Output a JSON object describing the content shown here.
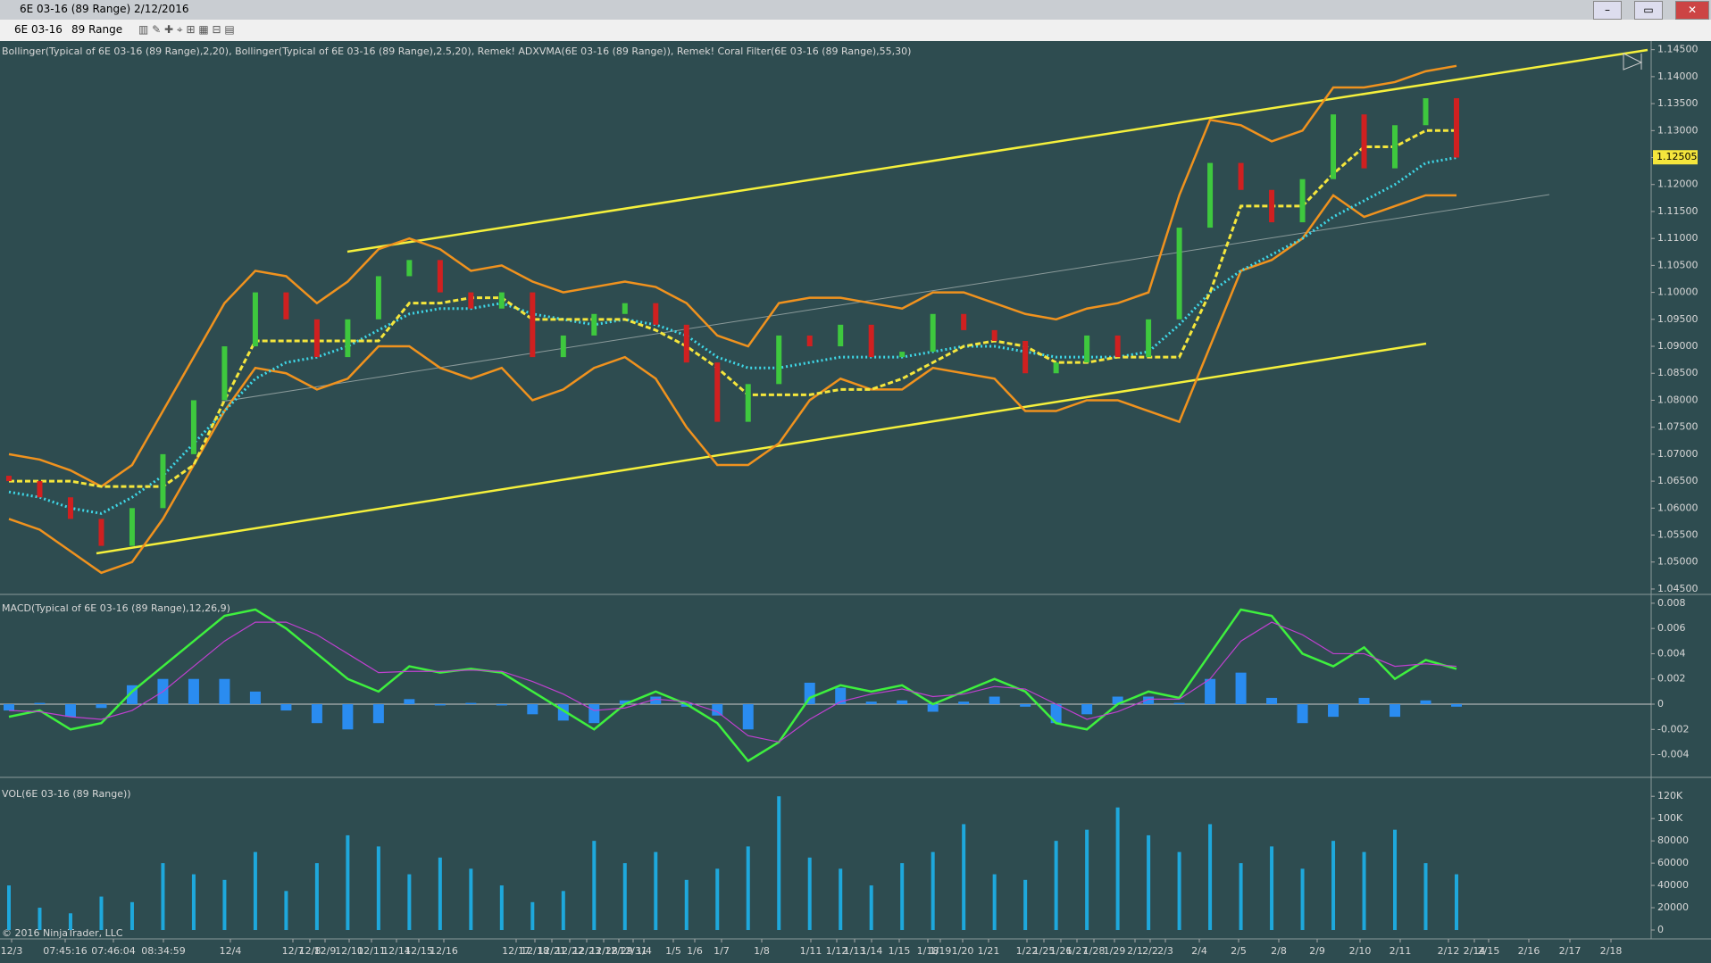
{
  "window": {
    "title": "6E 03-16 (89 Range)  2/12/2016",
    "instrument": "6E 03-16",
    "period": "89 Range"
  },
  "copyright": "© 2016 NinjaTrader, LLC",
  "x_axis_labels": [
    "12/3",
    "07:45:16",
    "07:46:04",
    "08:34:59",
    "12/4",
    "12/7",
    "12/8",
    "12/9",
    "12/10",
    "12/11",
    "12/14",
    "12/15",
    "12/16",
    "12/17",
    "12/18",
    "12/21",
    "12/22",
    "12/23",
    "12/28",
    "12/29",
    "12/31",
    "1/4",
    "1/5",
    "1/6",
    "1/7",
    "1/8",
    "1/11",
    "1/12",
    "1/13",
    "1/14",
    "1/15",
    "1/18",
    "1/19",
    "1/20",
    "1/21",
    "1/22",
    "1/25",
    "1/26",
    "1/27",
    "1/28",
    "1/29",
    "2/1",
    "2/2",
    "2/3",
    "2/4",
    "2/5",
    "2/8",
    "2/9",
    "2/10",
    "2/11",
    "2/12",
    "2/14",
    "2/15",
    "2/16",
    "2/17",
    "2/18"
  ],
  "chart_data": [
    {
      "type": "candlestick",
      "label": "Bollinger(Typical of 6E 03-16 (89 Range),2,20), Bollinger(Typical of 6E 03-16 (89 Range),2.5,20), Remek! ADXVMA(6E 03-16 (89 Range)), Remek! Coral Filter(6E 03-16 (89 Range),55,30)",
      "up_color": "#3ec83e",
      "down_color": "#d02020",
      "open": [
        1.066,
        1.065,
        1.062,
        1.058,
        1.053,
        1.06,
        1.07,
        1.08,
        1.09,
        1.1,
        1.095,
        1.088,
        1.095,
        1.103,
        1.106,
        1.1,
        1.097,
        1.1,
        1.088,
        1.092,
        1.096,
        1.098,
        1.094,
        1.087,
        1.076,
        1.083,
        1.092,
        1.09,
        1.094,
        1.088,
        1.089,
        1.096,
        1.093,
        1.091,
        1.085,
        1.087,
        1.092,
        1.088,
        1.095,
        1.112,
        1.124,
        1.119,
        1.113,
        1.121,
        1.133,
        1.123,
        1.131,
        1.136
      ],
      "close": [
        1.065,
        1.062,
        1.058,
        1.053,
        1.06,
        1.07,
        1.08,
        1.09,
        1.1,
        1.095,
        1.088,
        1.095,
        1.103,
        1.106,
        1.1,
        1.097,
        1.1,
        1.088,
        1.092,
        1.096,
        1.098,
        1.094,
        1.087,
        1.076,
        1.083,
        1.092,
        1.09,
        1.094,
        1.088,
        1.089,
        1.096,
        1.093,
        1.091,
        1.085,
        1.087,
        1.092,
        1.088,
        1.095,
        1.112,
        1.124,
        1.119,
        1.113,
        1.121,
        1.133,
        1.123,
        1.131,
        1.136,
        1.125
      ],
      "series": [
        {
          "color": "#f0921e",
          "values": [
            1.07,
            1.069,
            1.067,
            1.064,
            1.068,
            1.078,
            1.088,
            1.098,
            1.104,
            1.103,
            1.098,
            1.102,
            1.108,
            1.11,
            1.108,
            1.104,
            1.105,
            1.102,
            1.1,
            1.101,
            1.102,
            1.101,
            1.098,
            1.092,
            1.09,
            1.098,
            1.099,
            1.099,
            1.098,
            1.097,
            1.1,
            1.1,
            1.098,
            1.096,
            1.095,
            1.097,
            1.098,
            1.1,
            1.118,
            1.132,
            1.131,
            1.128,
            1.13,
            1.138,
            1.138,
            1.139,
            1.141,
            1.142
          ]
        },
        {
          "color": "#f0921e",
          "values": [
            1.058,
            1.056,
            1.052,
            1.048,
            1.05,
            1.058,
            1.068,
            1.078,
            1.086,
            1.085,
            1.082,
            1.084,
            1.09,
            1.09,
            1.086,
            1.084,
            1.086,
            1.08,
            1.082,
            1.086,
            1.088,
            1.084,
            1.075,
            1.068,
            1.068,
            1.072,
            1.08,
            1.084,
            1.082,
            1.082,
            1.086,
            1.085,
            1.084,
            1.078,
            1.078,
            1.08,
            1.08,
            1.078,
            1.076,
            1.09,
            1.104,
            1.106,
            1.11,
            1.118,
            1.114,
            1.116,
            1.118,
            1.118
          ]
        },
        {
          "color": "#3fd8e8",
          "style": "dotted",
          "values": [
            1.063,
            1.062,
            1.06,
            1.059,
            1.062,
            1.066,
            1.072,
            1.078,
            1.084,
            1.087,
            1.088,
            1.09,
            1.093,
            1.096,
            1.097,
            1.097,
            1.098,
            1.096,
            1.095,
            1.094,
            1.095,
            1.094,
            1.092,
            1.088,
            1.086,
            1.086,
            1.087,
            1.088,
            1.088,
            1.088,
            1.089,
            1.09,
            1.09,
            1.089,
            1.088,
            1.088,
            1.088,
            1.089,
            1.094,
            1.1,
            1.104,
            1.107,
            1.11,
            1.114,
            1.117,
            1.12,
            1.124,
            1.125
          ]
        },
        {
          "color": "#f5e63c",
          "style": "dashed",
          "values": [
            1.065,
            1.065,
            1.065,
            1.064,
            1.064,
            1.064,
            1.068,
            1.08,
            1.091,
            1.091,
            1.091,
            1.091,
            1.091,
            1.098,
            1.098,
            1.099,
            1.099,
            1.095,
            1.095,
            1.095,
            1.095,
            1.093,
            1.09,
            1.086,
            1.081,
            1.081,
            1.081,
            1.082,
            1.082,
            1.084,
            1.087,
            1.09,
            1.091,
            1.09,
            1.087,
            1.087,
            1.088,
            1.088,
            1.088,
            1.1,
            1.116,
            1.116,
            1.116,
            1.122,
            1.127,
            1.127,
            1.13,
            1.13
          ]
        }
      ],
      "current_price": {
        "value": 1.12505,
        "label": "1.12505"
      },
      "current_price_color": "#f5e63c",
      "ylim": [
        1.044,
        1.1466
      ],
      "yticks": [
        {
          "value": 1.145,
          "label": "1.14500"
        },
        {
          "value": 1.14,
          "label": "1.14000"
        },
        {
          "value": 1.135,
          "label": "1.13500"
        },
        {
          "value": 1.13,
          "label": "1.13000"
        },
        {
          "value": 1.125,
          "label": "1.12500"
        },
        {
          "value": 1.12,
          "label": "1.12000"
        },
        {
          "value": 1.115,
          "label": "1.11500"
        },
        {
          "value": 1.11,
          "label": "1.11000"
        },
        {
          "value": 1.105,
          "label": "1.10500"
        },
        {
          "value": 1.1,
          "label": "1.10000"
        },
        {
          "value": 1.095,
          "label": "1.09500"
        },
        {
          "value": 1.09,
          "label": "1.09000"
        },
        {
          "value": 1.085,
          "label": "1.08500"
        },
        {
          "value": 1.08,
          "label": "1.08000"
        },
        {
          "value": 1.075,
          "label": "1.07500"
        },
        {
          "value": 1.07,
          "label": "1.07000"
        },
        {
          "value": 1.065,
          "label": "1.06500"
        },
        {
          "value": 1.06,
          "label": "1.06000"
        },
        {
          "value": 1.055,
          "label": "1.05500"
        },
        {
          "value": 1.05,
          "label": "1.05000"
        },
        {
          "value": 1.045,
          "label": "1.04500"
        }
      ]
    },
    {
      "type": "macd",
      "label": "MACD(Typical of 6E 03-16 (89 Range),12,26,9)",
      "series": [
        {
          "color": "#3ef03e",
          "values": [
            -0.001,
            -0.0005,
            -0.002,
            -0.0015,
            0.001,
            0.003,
            0.005,
            0.007,
            0.0075,
            0.006,
            0.004,
            0.002,
            0.001,
            0.003,
            0.0025,
            0.0028,
            0.0025,
            0.001,
            -0.0005,
            -0.002,
            0,
            0.001,
            0,
            -0.0015,
            -0.0045,
            -0.003,
            0.0005,
            0.0015,
            0.001,
            0.0015,
            0,
            0.001,
            0.002,
            0.001,
            -0.0015,
            -0.002,
            0,
            0.001,
            0.0005,
            0.004,
            0.0075,
            0.007,
            0.004,
            0.003,
            0.0045,
            0.002,
            0.0035,
            0.0028
          ]
        },
        {
          "color": "#c040d0",
          "values": [
            -0.0005,
            -0.0006,
            -0.001,
            -0.0012,
            -0.0005,
            0.001,
            0.003,
            0.005,
            0.0065,
            0.0065,
            0.0055,
            0.004,
            0.0025,
            0.0026,
            0.0026,
            0.0027,
            0.0026,
            0.0018,
            0.0008,
            -0.0005,
            -0.0003,
            0.0004,
            0.0002,
            -0.0006,
            -0.0025,
            -0.003,
            -0.0012,
            0.0002,
            0.0008,
            0.0012,
            0.0006,
            0.0008,
            0.0014,
            0.0012,
            0,
            -0.0012,
            -0.0006,
            0.0004,
            0.0004,
            0.002,
            0.005,
            0.0065,
            0.0055,
            0.004,
            0.004,
            0.003,
            0.0032,
            0.003
          ]
        }
      ],
      "histogram_color": "#2a8cf0",
      "histogram": [
        -0.0005,
        0.0001,
        -0.001,
        -0.0003,
        0.0015,
        0.002,
        0.002,
        0.002,
        0.001,
        -0.0005,
        -0.0015,
        -0.002,
        -0.0015,
        0.0004,
        -0.0001,
        0.0001,
        -0.0001,
        -0.0008,
        -0.0013,
        -0.0015,
        0.0003,
        0.0006,
        -0.0002,
        -0.0009,
        -0.002,
        0,
        0.0017,
        0.0013,
        0.0002,
        0.0003,
        -0.0006,
        0.0002,
        0.0006,
        -0.0002,
        -0.0015,
        -0.0008,
        0.0006,
        0.0006,
        0.0001,
        0.002,
        0.0025,
        0.0005,
        -0.0015,
        -0.001,
        0.0005,
        -0.001,
        0.0003,
        -0.0002
      ],
      "ylim": [
        -0.0058,
        0.0087
      ],
      "yticks": [
        0.008,
        0.006,
        0.004,
        0.002,
        0,
        -0.002,
        -0.004
      ]
    },
    {
      "type": "volume",
      "label": "VOL(6E 03-16 (89 Range))",
      "color": "#1ea8dc",
      "values": [
        40000,
        20000,
        15000,
        30000,
        25000,
        60000,
        50000,
        45000,
        70000,
        35000,
        60000,
        85000,
        75000,
        50000,
        65000,
        55000,
        40000,
        25000,
        35000,
        80000,
        60000,
        70000,
        45000,
        55000,
        75000,
        120000,
        65000,
        55000,
        40000,
        60000,
        70000,
        95000,
        50000,
        45000,
        80000,
        90000,
        110000,
        85000,
        70000,
        95000,
        60000,
        75000,
        55000,
        80000,
        70000,
        90000,
        60000,
        50000
      ],
      "ylim": [
        -8000,
        137000
      ],
      "yticks": [
        {
          "value": 120000,
          "label": "120K"
        },
        {
          "value": 100000,
          "label": "100K"
        },
        {
          "value": 80000,
          "label": "80000"
        },
        {
          "value": 60000,
          "label": "60000"
        },
        {
          "value": 40000,
          "label": "40000"
        },
        {
          "value": 20000,
          "label": "20000"
        },
        0
      ]
    }
  ]
}
